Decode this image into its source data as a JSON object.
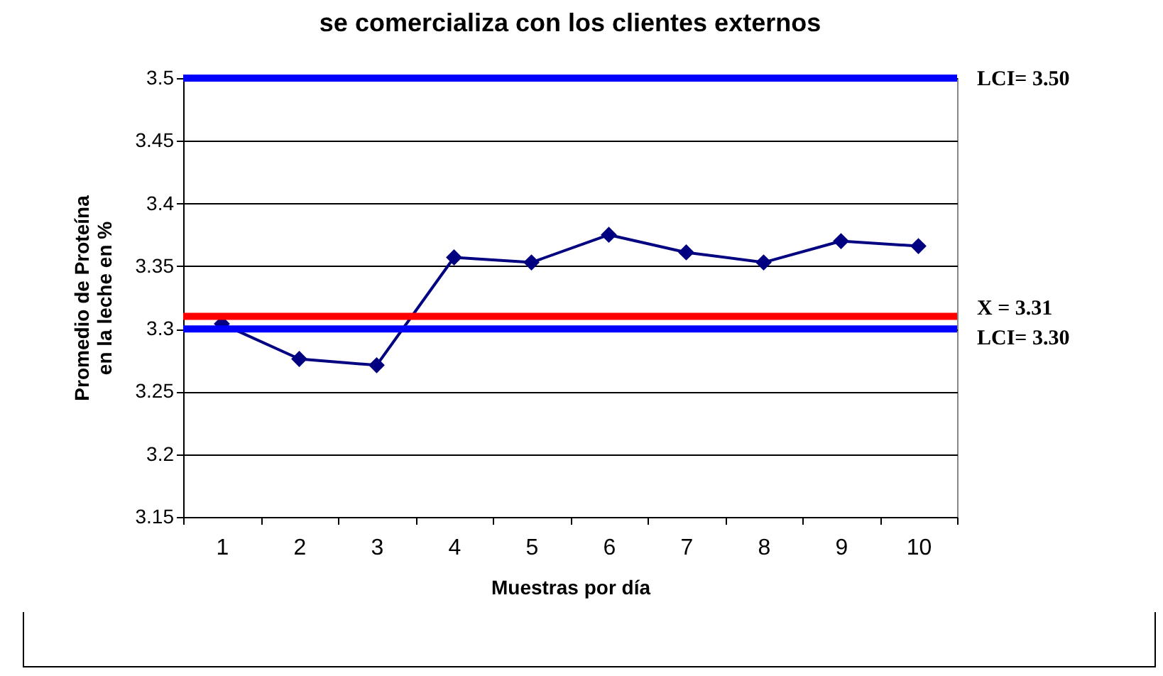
{
  "chart_data": {
    "type": "line",
    "title": "se comercializa con los clientes externos",
    "xlabel": "Muestras por día",
    "ylabel": "Promedio de Proteína en la leche en %",
    "categories": [
      "1",
      "2",
      "3",
      "4",
      "5",
      "6",
      "7",
      "8",
      "9",
      "10"
    ],
    "series": [
      {
        "color": "#000080",
        "values": [
          3.304,
          3.276,
          3.271,
          3.357,
          3.353,
          3.375,
          3.361,
          3.353,
          3.37,
          3.366
        ]
      }
    ],
    "ylim": [
      3.15,
      3.5
    ],
    "yticks": [
      3.15,
      3.2,
      3.25,
      3.3,
      3.35,
      3.4,
      3.45,
      3.5
    ],
    "grid": "y",
    "marker": "diamond",
    "line_style": "solid",
    "ref_lines": [
      {
        "axis": "y",
        "value": 3.5,
        "label": "LCI= 3.50",
        "color": "#0000ff"
      },
      {
        "axis": "y",
        "value": 3.31,
        "label": "X   = 3.31",
        "color": "#ff0000"
      },
      {
        "axis": "y",
        "value": 3.3,
        "label": "LCI= 3.30",
        "color": "#0000ff"
      }
    ]
  }
}
